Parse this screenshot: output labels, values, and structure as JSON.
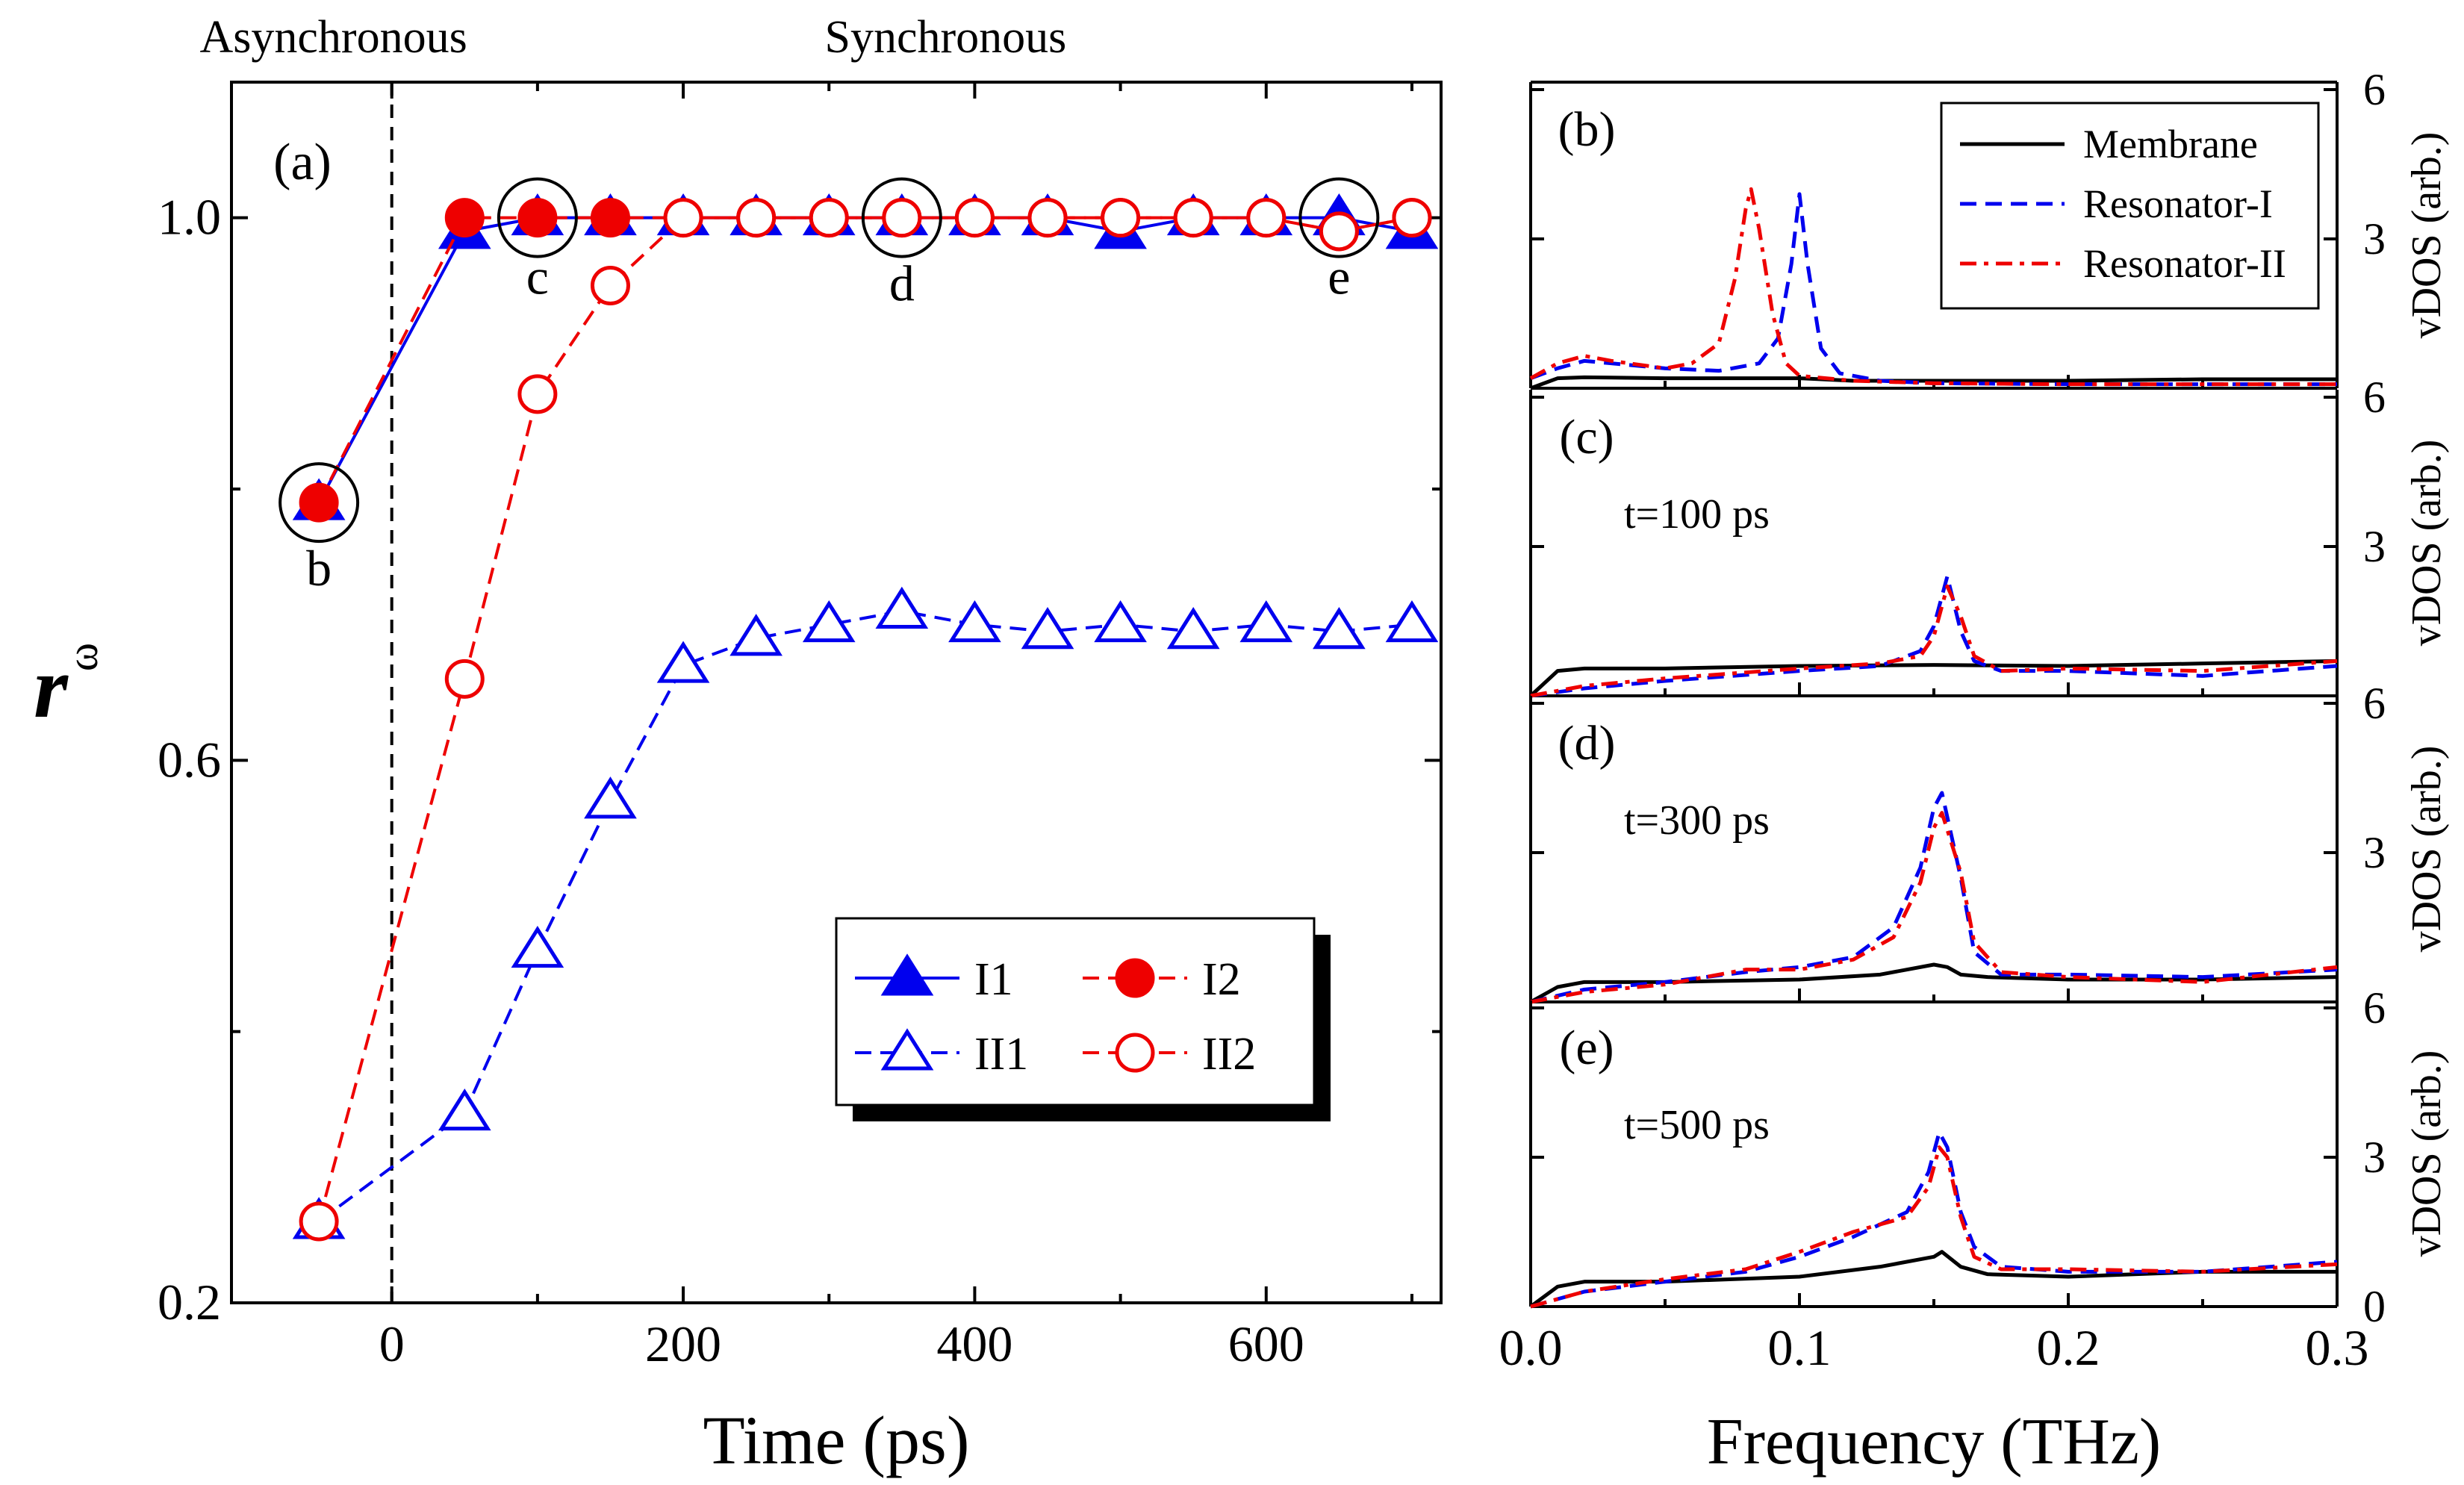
{
  "chart_data": [
    {
      "id": "a",
      "type": "line",
      "panel_label": "(a)",
      "xlabel": "Time (ps)",
      "ylabel": "r",
      "ylabel_sub": "ω",
      "xlim": [
        -110,
        720
      ],
      "ylim": [
        0.2,
        1.1
      ],
      "xticks": [
        0,
        200,
        400,
        600
      ],
      "xtick_labels": [
        "0",
        "200",
        "400",
        "600"
      ],
      "yticks": [
        0.2,
        0.6,
        1.0
      ],
      "ytick_labels": [
        "0.2",
        "0.6",
        "1.0"
      ],
      "region_labels": [
        {
          "text": "Asynchronous",
          "x": -40
        },
        {
          "text": "Synchronous",
          "x": 380
        }
      ],
      "divider_x": 0,
      "annotations": [
        {
          "text": "b",
          "x": -50,
          "y": 0.79,
          "label_y": 0.74
        },
        {
          "text": "c",
          "x": 100,
          "y": 1.0,
          "label_y": 0.955
        },
        {
          "text": "d",
          "x": 350,
          "y": 1.0,
          "label_y": 0.95
        },
        {
          "text": "e",
          "x": 650,
          "y": 1.0,
          "label_y": 0.955
        }
      ],
      "series": [
        {
          "name": "I1",
          "color": "#0000ee",
          "marker": "triangle",
          "filled": true,
          "dash": "solid",
          "x": [
            -50,
            50,
            100,
            150,
            200,
            250,
            300,
            350,
            400,
            450,
            500,
            550,
            600,
            650,
            700
          ],
          "y": [
            0.79,
            0.99,
            1.0,
            1.0,
            1.0,
            1.0,
            1.0,
            1.0,
            1.0,
            1.0,
            0.99,
            1.0,
            1.0,
            1.0,
            0.99
          ]
        },
        {
          "name": "I2",
          "color": "#ee0000",
          "marker": "circle",
          "filled": true,
          "dash": "dashed",
          "x": [
            -50,
            50,
            100,
            150,
            200,
            250,
            300,
            350,
            400,
            450,
            500,
            550,
            600,
            650,
            700
          ],
          "y": [
            0.79,
            1.0,
            1.0,
            1.0,
            1.0,
            1.0,
            1.0,
            1.0,
            1.0,
            1.0,
            1.0,
            1.0,
            1.0,
            0.99,
            1.0
          ]
        },
        {
          "name": "II1",
          "color": "#0000ee",
          "marker": "triangle",
          "filled": false,
          "dash": "dashed",
          "x": [
            -50,
            50,
            100,
            150,
            200,
            250,
            300,
            350,
            400,
            450,
            500,
            550,
            600,
            650,
            700
          ],
          "y": [
            0.26,
            0.34,
            0.46,
            0.57,
            0.67,
            0.69,
            0.7,
            0.71,
            0.7,
            0.695,
            0.7,
            0.695,
            0.7,
            0.695,
            0.7
          ]
        },
        {
          "name": "II2",
          "color": "#ee0000",
          "marker": "circle",
          "filled": false,
          "dash": "dashed",
          "x": [
            -50,
            50,
            100,
            150,
            200,
            250,
            300,
            350,
            400,
            450,
            500,
            550,
            600,
            650,
            700
          ],
          "y": [
            0.26,
            0.66,
            0.87,
            0.95,
            1.0,
            1.0,
            1.0,
            1.0,
            1.0,
            1.0,
            1.0,
            1.0,
            1.0,
            0.99,
            1.0
          ]
        }
      ],
      "legend_position": "bottom-right"
    },
    {
      "id": "b",
      "type": "line",
      "panel_label": "(b)",
      "time_label": "",
      "xlim": [
        0,
        0.3
      ],
      "ylim": [
        0,
        6
      ],
      "right_ticks": [
        "6",
        "3"
      ],
      "right_label": "vDOS (arb.)",
      "legend": [
        "Membrane",
        "Resonator-I",
        "Resonator-II"
      ],
      "series": [
        {
          "name": "Membrane",
          "color": "#000000",
          "dash": "solid",
          "x": [
            0,
            0.01,
            0.02,
            0.05,
            0.08,
            0.1,
            0.12,
            0.15,
            0.2,
            0.25,
            0.3
          ],
          "y": [
            0,
            0.2,
            0.22,
            0.2,
            0.2,
            0.2,
            0.15,
            0.15,
            0.15,
            0.18,
            0.18
          ]
        },
        {
          "name": "Resonator-I",
          "color": "#0000ee",
          "dash": "dashed",
          "x": [
            0,
            0.01,
            0.02,
            0.03,
            0.05,
            0.07,
            0.085,
            0.092,
            0.097,
            0.1,
            0.103,
            0.108,
            0.115,
            0.13,
            0.15,
            0.2,
            0.25,
            0.3
          ],
          "y": [
            0.2,
            0.4,
            0.55,
            0.5,
            0.4,
            0.35,
            0.5,
            1.0,
            2.5,
            3.9,
            2.5,
            0.8,
            0.3,
            0.15,
            0.1,
            0.08,
            0.08,
            0.08
          ]
        },
        {
          "name": "Resonator-II",
          "color": "#ee0000",
          "dash": "dashdot",
          "x": [
            0,
            0.01,
            0.02,
            0.03,
            0.05,
            0.06,
            0.07,
            0.076,
            0.08,
            0.082,
            0.085,
            0.09,
            0.095,
            0.1,
            0.12,
            0.15,
            0.2,
            0.25,
            0.3
          ],
          "y": [
            0.2,
            0.5,
            0.65,
            0.55,
            0.4,
            0.5,
            0.9,
            2.2,
            3.6,
            4.0,
            3.2,
            1.5,
            0.5,
            0.25,
            0.15,
            0.1,
            0.08,
            0.08,
            0.08
          ]
        }
      ]
    },
    {
      "id": "c",
      "type": "line",
      "panel_label": "(c)",
      "time_label": "t=100 ps",
      "xlim": [
        0,
        0.3
      ],
      "ylim": [
        0,
        6
      ],
      "right_ticks": [
        "6",
        "3"
      ],
      "right_label": "vDOS (arb.)",
      "series": [
        {
          "name": "Membrane",
          "color": "#000000",
          "dash": "solid",
          "x": [
            0,
            0.01,
            0.02,
            0.05,
            0.1,
            0.15,
            0.2,
            0.25,
            0.3
          ],
          "y": [
            0,
            0.5,
            0.55,
            0.55,
            0.6,
            0.62,
            0.6,
            0.65,
            0.7
          ]
        },
        {
          "name": "Resonator-I",
          "color": "#0000ee",
          "dash": "dashed",
          "x": [
            0,
            0.02,
            0.05,
            0.1,
            0.13,
            0.145,
            0.15,
            0.155,
            0.16,
            0.165,
            0.175,
            0.2,
            0.25,
            0.3
          ],
          "y": [
            0,
            0.15,
            0.3,
            0.5,
            0.6,
            0.9,
            1.4,
            2.4,
            1.3,
            0.7,
            0.5,
            0.5,
            0.4,
            0.6
          ]
        },
        {
          "name": "Resonator-II",
          "color": "#ee0000",
          "dash": "dashdot",
          "x": [
            0,
            0.02,
            0.05,
            0.1,
            0.13,
            0.145,
            0.15,
            0.155,
            0.16,
            0.165,
            0.175,
            0.2,
            0.25,
            0.3
          ],
          "y": [
            0,
            0.2,
            0.35,
            0.55,
            0.65,
            0.8,
            1.2,
            2.2,
            1.6,
            0.8,
            0.5,
            0.55,
            0.5,
            0.7
          ]
        }
      ]
    },
    {
      "id": "d",
      "type": "line",
      "panel_label": "(d)",
      "time_label": "t=300 ps",
      "xlim": [
        0,
        0.3
      ],
      "ylim": [
        0,
        6
      ],
      "right_ticks": [
        "6",
        "3"
      ],
      "right_label": "vDOS (arb.)",
      "series": [
        {
          "name": "Membrane",
          "color": "#000000",
          "dash": "solid",
          "x": [
            0,
            0.01,
            0.02,
            0.05,
            0.1,
            0.13,
            0.15,
            0.155,
            0.16,
            0.17,
            0.2,
            0.25,
            0.3
          ],
          "y": [
            0,
            0.3,
            0.4,
            0.4,
            0.45,
            0.55,
            0.75,
            0.7,
            0.55,
            0.5,
            0.45,
            0.45,
            0.5
          ]
        },
        {
          "name": "Resonator-I",
          "color": "#0000ee",
          "dash": "dashed",
          "x": [
            0,
            0.02,
            0.05,
            0.08,
            0.1,
            0.12,
            0.135,
            0.145,
            0.15,
            0.153,
            0.16,
            0.165,
            0.175,
            0.2,
            0.25,
            0.3
          ],
          "y": [
            0,
            0.25,
            0.4,
            0.6,
            0.7,
            0.9,
            1.5,
            2.7,
            3.9,
            4.2,
            2.5,
            1.0,
            0.55,
            0.55,
            0.5,
            0.65
          ]
        },
        {
          "name": "Resonator-II",
          "color": "#ee0000",
          "dash": "dashdot",
          "x": [
            0,
            0.02,
            0.05,
            0.08,
            0.1,
            0.12,
            0.135,
            0.145,
            0.15,
            0.153,
            0.16,
            0.165,
            0.175,
            0.2,
            0.25,
            0.3
          ],
          "y": [
            0,
            0.2,
            0.35,
            0.65,
            0.65,
            0.85,
            1.3,
            2.4,
            3.5,
            3.8,
            2.6,
            1.2,
            0.6,
            0.5,
            0.4,
            0.7
          ]
        }
      ]
    },
    {
      "id": "e",
      "type": "line",
      "panel_label": "(e)",
      "time_label": "t=500 ps",
      "xlim": [
        0,
        0.3
      ],
      "ylim": [
        0,
        6
      ],
      "right_ticks": [
        "6",
        "3",
        "0"
      ],
      "right_label": "vDOS (arb.)",
      "xticks": [
        0.0,
        0.1,
        0.2,
        0.3
      ],
      "xtick_labels": [
        "0.0",
        "0.1",
        "0.2",
        "0.3"
      ],
      "xlabel": "Frequency (THz)",
      "series": [
        {
          "name": "Membrane",
          "color": "#000000",
          "dash": "solid",
          "x": [
            0,
            0.01,
            0.02,
            0.05,
            0.1,
            0.13,
            0.15,
            0.153,
            0.16,
            0.17,
            0.2,
            0.25,
            0.3
          ],
          "y": [
            0,
            0.4,
            0.5,
            0.5,
            0.6,
            0.8,
            1.0,
            1.1,
            0.8,
            0.65,
            0.6,
            0.7,
            0.7
          ]
        },
        {
          "name": "Resonator-I",
          "color": "#0000ee",
          "dash": "dashed",
          "x": [
            0,
            0.02,
            0.05,
            0.08,
            0.1,
            0.12,
            0.14,
            0.148,
            0.152,
            0.155,
            0.16,
            0.165,
            0.175,
            0.2,
            0.25,
            0.3
          ],
          "y": [
            0,
            0.3,
            0.5,
            0.7,
            1.0,
            1.4,
            1.9,
            2.7,
            3.5,
            3.2,
            1.9,
            1.2,
            0.8,
            0.7,
            0.7,
            0.9
          ]
        },
        {
          "name": "Resonator-II",
          "color": "#ee0000",
          "dash": "dashdot",
          "x": [
            0,
            0.02,
            0.05,
            0.08,
            0.1,
            0.12,
            0.14,
            0.148,
            0.152,
            0.155,
            0.16,
            0.165,
            0.175,
            0.2,
            0.25,
            0.3
          ],
          "y": [
            0,
            0.3,
            0.55,
            0.75,
            1.1,
            1.5,
            1.8,
            2.4,
            3.2,
            3.0,
            1.8,
            1.0,
            0.75,
            0.75,
            0.7,
            0.85
          ]
        }
      ]
    }
  ]
}
